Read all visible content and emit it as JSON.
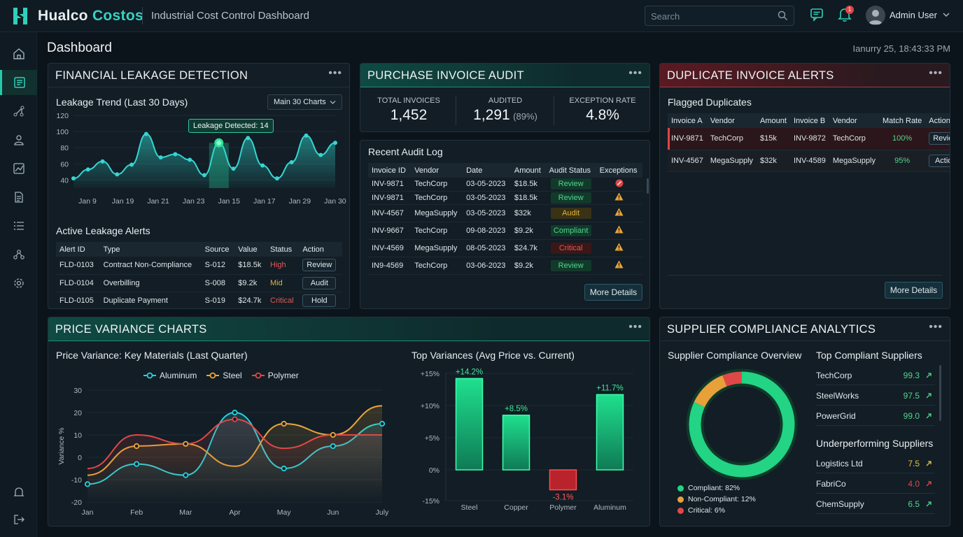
{
  "app": {
    "brand_a": "Hualco",
    "brand_b": "Costos",
    "subtitle": "Industrial Cost Control Dashboard"
  },
  "header": {
    "search_placeholder": "Search",
    "notification_count": "1",
    "user_name": "Admin User"
  },
  "page": {
    "title": "Dashboard",
    "datetime": "Ianurry 25, 18:43:33 PM"
  },
  "sidebar": {
    "items": [
      "home-icon",
      "ledger-icon",
      "flow-icon",
      "users-icon",
      "chart-icon",
      "document-icon",
      "list-icon",
      "org-icon",
      "gear-icon",
      "bell-icon",
      "logout-icon"
    ],
    "active_index": 1
  },
  "leakage": {
    "title": "FINANCIAL LEAKAGE DETECTION",
    "trend_title": "Leakage Trend (Last 30 Days)",
    "dropdown": "Main 30 Charts",
    "tooltip": "Leakage Detected: 14",
    "alerts_title": "Active Leakage Alerts",
    "columns": [
      "Alert ID",
      "Type",
      "Source",
      "Value",
      "Status",
      "Action"
    ],
    "rows": [
      {
        "id": "FLD-0103",
        "type": "Contract Non-Compliance",
        "source": "S-012",
        "value": "$18.5k",
        "status": "High",
        "action": "Review"
      },
      {
        "id": "FLD-0104",
        "type": "Overbilling",
        "source": "S-008",
        "value": "$9.2k",
        "status": "Mid",
        "action": "Audit"
      },
      {
        "id": "FLD-0105",
        "type": "Duplicate Payment",
        "source": "S-019",
        "value": "$24.7k",
        "status": "Critical",
        "action": "Hold"
      }
    ]
  },
  "audit": {
    "title": "PURCHASE INVOICE AUDIT",
    "kpis": [
      {
        "label": "TOTAL INVOICES",
        "value": "1,452",
        "extra": ""
      },
      {
        "label": "AUDITED",
        "value": "1,291",
        "extra": "(89%)"
      },
      {
        "label": "EXCEPTION RATE",
        "value": "4.8%",
        "extra": ""
      }
    ],
    "log_title": "Recent Audit Log",
    "columns": [
      "Invoice ID",
      "Vendor",
      "Date",
      "Amount",
      "Audit Status",
      "Exceptions"
    ],
    "rows": [
      {
        "id": "INV-9871",
        "vendor": "TechCorp",
        "date": "03-05-2023",
        "amount": "$18.5k",
        "status": "Review",
        "exc": "error"
      },
      {
        "id": "INV-9871",
        "vendor": "TechCorp",
        "date": "03-05-2023",
        "amount": "$18.5k",
        "status": "Review",
        "exc": "warning"
      },
      {
        "id": "INV-4567",
        "vendor": "MegaSupply",
        "date": "03-05-2023",
        "amount": "$32k",
        "status": "Audit",
        "exc": "warning"
      },
      {
        "id": "INV-9667",
        "vendor": "TechCorp",
        "date": "09-08-2023",
        "amount": "$9.2k",
        "status": "Compliant",
        "exc": "warning"
      },
      {
        "id": "INV-4569",
        "vendor": "MegaSupply",
        "date": "08-05-2023",
        "amount": "$24.7k",
        "status": "Critical",
        "exc": "warning"
      },
      {
        "id": "IN9-4569",
        "vendor": "TechCorp",
        "date": "03-06-2023",
        "amount": "$9.2k",
        "status": "Review",
        "exc": "warning"
      }
    ],
    "more": "More Details"
  },
  "duplicates": {
    "title": "DUPLICATE INVOICE ALERTS",
    "section": "Flagged Duplicates",
    "columns": [
      "Invoice A",
      "Vendor",
      "Amount",
      "Invoice B",
      "Vendor",
      "Match Rate",
      "Action"
    ],
    "rows": [
      {
        "a": "INV-9871",
        "vendor_a": "TechCorp",
        "amount": "$15k",
        "b": "INV-9872",
        "vendor_b": "TechCorp",
        "rate": "100%",
        "action": "Review"
      },
      {
        "a": "INV-4567",
        "vendor_a": "MegaSupply",
        "amount": "$32k",
        "b": "INV-4589",
        "vendor_b": "MegaSupply",
        "rate": "95%",
        "action": "Action"
      }
    ],
    "more": "More Details"
  },
  "variance": {
    "title": "PRICE VARIANCE CHARTS",
    "line_title": "Price Variance: Key Materials (Last Quarter)",
    "bar_title": "Top Variances (Avg Price vs. Current)"
  },
  "supplier": {
    "title": "SUPPLIER COMPLIANCE ANALYTICS",
    "overview": "Supplier Compliance Overview",
    "top_title": "Top Compliant Suppliers",
    "top": [
      {
        "name": "TechCorp",
        "score": "99.3"
      },
      {
        "name": "SteelWorks",
        "score": "97.5"
      },
      {
        "name": "PowerGrid",
        "score": "99.0"
      }
    ],
    "under_title": "Underperforming Suppliers",
    "under": [
      {
        "name": "Logistics Ltd",
        "score": "7.5",
        "color": "#e8c23c"
      },
      {
        "name": "FabriCo",
        "score": "4.0",
        "color": "#e04848"
      },
      {
        "name": "ChemSupply",
        "score": "6.5",
        "color": "#4fd68a"
      }
    ],
    "legend": [
      {
        "label": "Compliant: 82%",
        "color": "#22d483"
      },
      {
        "label": "Non-Compliant: 12%",
        "color": "#e8a03a"
      },
      {
        "label": "Critical: 6%",
        "color": "#e04848"
      }
    ]
  },
  "chart_data": [
    {
      "type": "area",
      "title": "Leakage Trend (Last 30 Days)",
      "x_ticks": [
        "Jan 9",
        "Jan 19",
        "Jan 21",
        "Jan 23",
        "Jan 15",
        "Jan 17",
        "Jan 29",
        "Jan 30"
      ],
      "y_ticks": [
        40,
        60,
        80,
        100,
        120
      ],
      "ylim": [
        30,
        120
      ],
      "values": [
        42,
        53,
        63,
        47,
        59,
        97,
        68,
        72,
        65,
        46,
        86,
        54,
        92,
        58,
        42,
        62,
        95,
        71,
        86
      ],
      "annotation": "Leakage Detected: 14"
    },
    {
      "type": "line",
      "title": "Price Variance: Key Materials (Last Quarter)",
      "ylabel": "Variance %",
      "categories": [
        "Jan",
        "Feb",
        "Mar",
        "Apr",
        "May",
        "Jun",
        "July"
      ],
      "ylim": [
        -20,
        30
      ],
      "y_ticks": [
        30,
        20,
        10,
        0,
        -10,
        -20
      ],
      "series": [
        {
          "name": "Aluminum",
          "color": "#22d3e0",
          "values": [
            -12,
            -3,
            -8,
            20,
            -5,
            5,
            15
          ]
        },
        {
          "name": "Steel",
          "color": "#e9a63a",
          "values": [
            -8,
            5,
            6,
            -4,
            15,
            10,
            23
          ]
        },
        {
          "name": "Polymer",
          "color": "#e04848",
          "values": [
            -5,
            10,
            6,
            17,
            4,
            10,
            10
          ]
        }
      ]
    },
    {
      "type": "bar",
      "title": "Top Variances (Avg Price vs. Current)",
      "categories": [
        "Steel",
        "Copper",
        "Polymer",
        "Aluminum"
      ],
      "values": [
        14.2,
        8.5,
        -3.1,
        11.7
      ],
      "labels": [
        "+14.2%",
        "+8.5%",
        "-3.1%",
        "+11.7%"
      ],
      "y_ticks": [
        "+15%",
        "+10%",
        "+5%",
        "0%",
        "-15%"
      ],
      "ylim": [
        -5,
        15
      ]
    },
    {
      "type": "pie",
      "title": "Supplier Compliance Overview",
      "categories": [
        "Compliant",
        "Non-Compliant",
        "Critical"
      ],
      "values": [
        82,
        12,
        6
      ]
    }
  ]
}
